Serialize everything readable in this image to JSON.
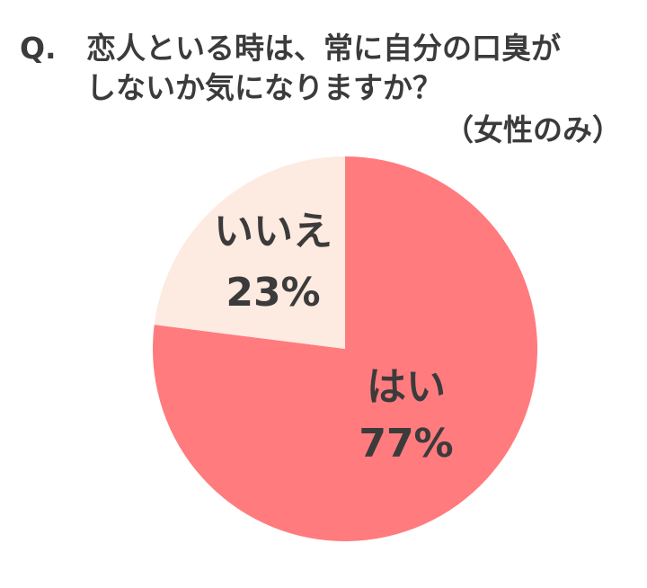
{
  "title": {
    "q_mark": "Q.",
    "line1": "恋人といる時は、常に自分の口臭が",
    "line2": "しないか気になりますか？",
    "subtitle": "（女性のみ）"
  },
  "chart_data": {
    "type": "pie",
    "slices": [
      {
        "label": "はい",
        "value": 77,
        "value_text": "77%",
        "color": "#ff7b7e"
      },
      {
        "label": "いいえ",
        "value": 23,
        "value_text": "23%",
        "color": "#fdeae0"
      }
    ],
    "start": "12 o'clock",
    "direction": "clockwise"
  }
}
